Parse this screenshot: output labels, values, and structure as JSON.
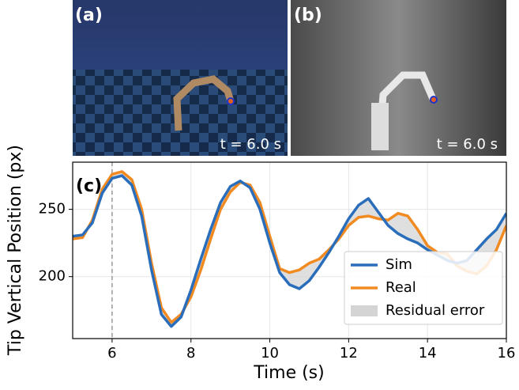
{
  "panels": [
    {
      "label": "(a)",
      "caption": "t = 6.0 s"
    },
    {
      "label": "(b)",
      "caption": "t = 6.0 s"
    }
  ],
  "chart_data": {
    "type": "line",
    "panel_label": "(c)",
    "x_label": "Time (s)",
    "y_label": "Tip Vertical Position (px)",
    "x": [
      5,
      5.25,
      5.5,
      5.75,
      6,
      6.25,
      6.5,
      6.75,
      7,
      7.25,
      7.5,
      7.75,
      8,
      8.25,
      8.5,
      8.75,
      9,
      9.25,
      9.5,
      9.75,
      10,
      10.25,
      10.5,
      10.75,
      11,
      11.25,
      11.5,
      11.75,
      12,
      12.25,
      12.5,
      12.75,
      13,
      13.25,
      13.5,
      13.75,
      14,
      14.25,
      14.5,
      14.75,
      15,
      15.25,
      15.5,
      15.75,
      16
    ],
    "series": [
      {
        "name": "Sim",
        "color": "#2a6ebb",
        "values": [
          230,
          231,
          240,
          262,
          273,
          275,
          268,
          245,
          205,
          172,
          163,
          170,
          190,
          213,
          235,
          255,
          267,
          271,
          266,
          250,
          225,
          203,
          194,
          191,
          197,
          207,
          218,
          230,
          243,
          253,
          258,
          248,
          238,
          232,
          228,
          225,
          220,
          216,
          212,
          210,
          212,
          220,
          228,
          235,
          247
        ]
      },
      {
        "name": "Real",
        "color": "#f28a22",
        "values": [
          228,
          229,
          242,
          265,
          276,
          278,
          272,
          250,
          210,
          177,
          166,
          172,
          185,
          205,
          228,
          250,
          263,
          270,
          268,
          255,
          230,
          206,
          203,
          205,
          210,
          213,
          220,
          228,
          238,
          244,
          245,
          243,
          242,
          247,
          245,
          235,
          223,
          218,
          217,
          208,
          204,
          202,
          208,
          220,
          238
        ]
      }
    ],
    "fill_between": {
      "name": "Residual error",
      "color": "#d4d4d4"
    },
    "vline": 6,
    "xlim": [
      5,
      16
    ],
    "xticks": [
      6,
      8,
      10,
      12,
      14,
      16
    ],
    "ylim": [
      154,
      285
    ],
    "yticks": [
      200,
      250
    ],
    "grid": true,
    "legend": "lower-right"
  }
}
